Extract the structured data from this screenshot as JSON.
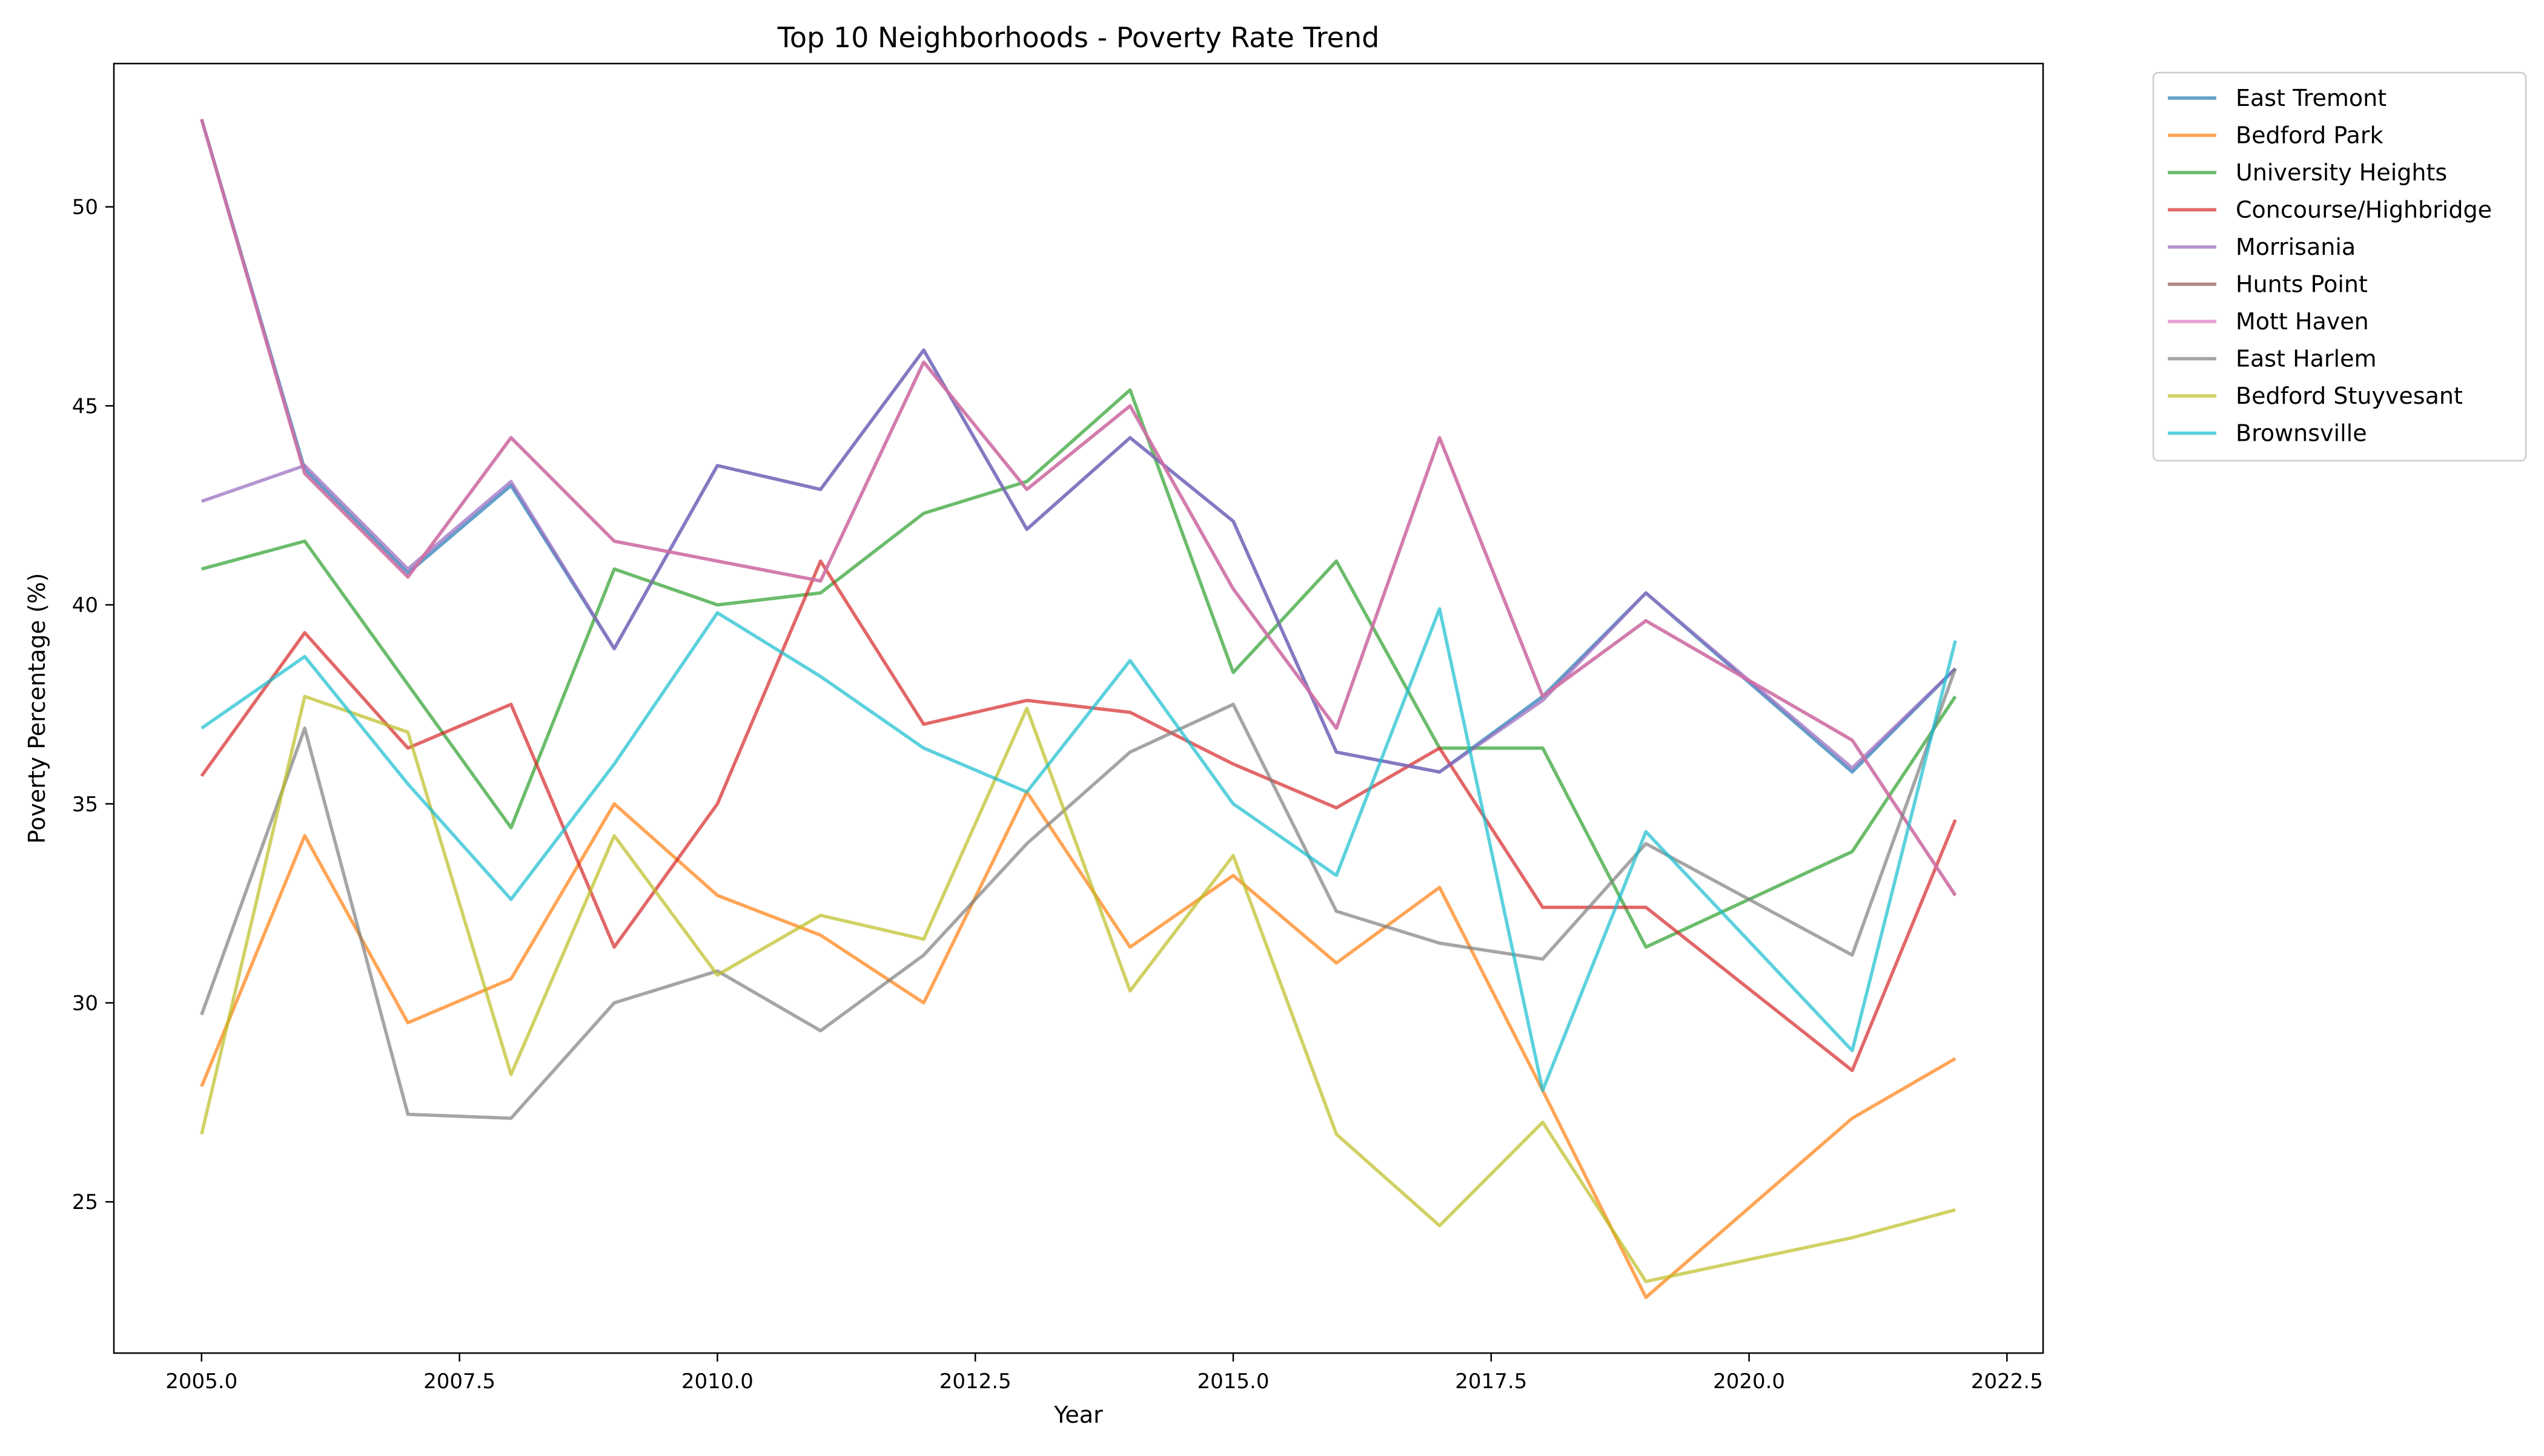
{
  "chart_data": {
    "type": "line",
    "title": "Top 10 Neighborhoods - Poverty Rate Trend",
    "xlabel": "Year",
    "ylabel": "Poverty Percentage (%)",
    "xlim": [
      2004.15,
      2022.85
    ],
    "ylim": [
      21.2,
      53.6
    ],
    "x_ticks": [
      2005.0,
      2007.5,
      2010.0,
      2012.5,
      2015.0,
      2017.5,
      2020.0,
      2022.5
    ],
    "x_tick_labels": [
      "2005.0",
      "2007.5",
      "2010.0",
      "2012.5",
      "2015.0",
      "2017.5",
      "2020.0",
      "2022.5"
    ],
    "y_ticks": [
      25,
      30,
      35,
      40,
      45,
      50
    ],
    "y_tick_labels": [
      "25",
      "30",
      "35",
      "40",
      "45",
      "50"
    ],
    "grid": false,
    "legend_position": "outside-top-right",
    "series": [
      {
        "name": "East Tremont",
        "color": "#1f77b4",
        "x": [
          2005,
          2006,
          2007,
          2008,
          2009,
          2010,
          2011,
          2012,
          2013,
          2014,
          2015,
          2016,
          2017,
          2018,
          2019,
          2021,
          2022
        ],
        "y": [
          52.2,
          43.4,
          40.8,
          43.0,
          38.9,
          43.5,
          42.9,
          46.4,
          41.9,
          44.2,
          42.1,
          36.3,
          35.8,
          37.7,
          40.3,
          35.8,
          38.4
        ]
      },
      {
        "name": "Bedford Park",
        "color": "#ff7f0e",
        "x": [
          2005,
          2006,
          2007,
          2008,
          2009,
          2010,
          2011,
          2012,
          2013,
          2014,
          2015,
          2016,
          2017,
          2018,
          2019,
          2021,
          2022
        ],
        "y": [
          27.9,
          34.2,
          29.5,
          30.6,
          35.0,
          32.7,
          31.7,
          30.0,
          35.3,
          31.4,
          33.2,
          31.0,
          32.9,
          27.8,
          22.6,
          27.1,
          28.6
        ]
      },
      {
        "name": "University Heights",
        "color": "#2ca02c",
        "x": [
          2005,
          2006,
          2007,
          2008,
          2009,
          2010,
          2011,
          2012,
          2013,
          2014,
          2015,
          2016,
          2017,
          2018,
          2019,
          2021,
          2022
        ],
        "y": [
          40.9,
          41.6,
          38.0,
          34.4,
          40.9,
          40.0,
          40.3,
          42.3,
          43.1,
          45.4,
          38.3,
          41.1,
          36.4,
          36.4,
          31.4,
          33.8,
          37.7
        ]
      },
      {
        "name": "Concourse/Highbridge",
        "color": "#d62728",
        "x": [
          2005,
          2006,
          2007,
          2008,
          2009,
          2010,
          2011,
          2012,
          2013,
          2014,
          2015,
          2016,
          2017,
          2018,
          2019,
          2021,
          2022
        ],
        "y": [
          35.7,
          39.3,
          36.4,
          37.5,
          31.4,
          35.0,
          41.1,
          37.0,
          37.6,
          37.3,
          36.0,
          34.9,
          36.4,
          32.4,
          32.4,
          28.3,
          34.6
        ]
      },
      {
        "name": "Morrisania",
        "color": "#9467bd",
        "x": [
          2005,
          2006,
          2007,
          2008,
          2009,
          2010,
          2011,
          2012,
          2013,
          2014,
          2015,
          2016,
          2017,
          2018,
          2019,
          2021,
          2022
        ],
        "y": [
          42.6,
          43.5,
          40.9,
          43.1,
          38.9,
          43.5,
          42.9,
          46.4,
          41.9,
          44.2,
          42.1,
          36.3,
          35.8,
          37.6,
          40.3,
          35.9,
          38.4
        ]
      },
      {
        "name": "Hunts Point",
        "color": "#8c564b",
        "x": [
          2005,
          2006,
          2007,
          2008,
          2009,
          2010,
          2011,
          2012,
          2013,
          2014,
          2015,
          2016,
          2017,
          2018,
          2019,
          2021,
          2022
        ],
        "y": [
          52.2,
          43.3,
          40.7,
          44.2,
          41.6,
          41.1,
          40.6,
          46.1,
          42.9,
          45.0,
          40.4,
          36.9,
          44.2,
          37.7,
          39.6,
          36.6,
          32.7
        ]
      },
      {
        "name": "Mott Haven",
        "color": "#e377c2",
        "x": [
          2005,
          2006,
          2007,
          2008,
          2009,
          2010,
          2011,
          2012,
          2013,
          2014,
          2015,
          2016,
          2017,
          2018,
          2019,
          2021,
          2022
        ],
        "y": [
          52.2,
          43.3,
          40.7,
          44.2,
          41.6,
          41.1,
          40.6,
          46.1,
          42.9,
          45.0,
          40.4,
          36.9,
          44.2,
          37.7,
          39.6,
          36.6,
          32.7
        ]
      },
      {
        "name": "East Harlem",
        "color": "#7f7f7f",
        "x": [
          2005,
          2006,
          2007,
          2008,
          2009,
          2010,
          2011,
          2012,
          2013,
          2014,
          2015,
          2016,
          2017,
          2018,
          2019,
          2021,
          2022
        ],
        "y": [
          29.7,
          36.9,
          27.2,
          27.1,
          30.0,
          30.8,
          29.3,
          31.2,
          34.0,
          36.3,
          37.5,
          32.3,
          31.5,
          31.1,
          34.0,
          31.2,
          38.4
        ]
      },
      {
        "name": "Bedford Stuyvesant",
        "color": "#bcbd22",
        "x": [
          2005,
          2006,
          2007,
          2008,
          2009,
          2010,
          2011,
          2012,
          2013,
          2014,
          2015,
          2016,
          2017,
          2018,
          2019,
          2021,
          2022
        ],
        "y": [
          26.7,
          37.7,
          36.8,
          28.2,
          34.2,
          30.7,
          32.2,
          31.6,
          37.4,
          30.3,
          33.7,
          26.7,
          24.4,
          27.0,
          23.0,
          24.1,
          24.8
        ]
      },
      {
        "name": "Brownsville",
        "color": "#17becf",
        "x": [
          2005,
          2006,
          2007,
          2008,
          2009,
          2010,
          2011,
          2012,
          2013,
          2014,
          2015,
          2016,
          2017,
          2018,
          2019,
          2021,
          2022
        ],
        "y": [
          36.9,
          38.7,
          35.5,
          32.6,
          36.0,
          39.8,
          38.2,
          36.4,
          35.3,
          38.6,
          35.0,
          33.2,
          39.9,
          27.8,
          34.3,
          28.8,
          39.1
        ]
      }
    ]
  }
}
